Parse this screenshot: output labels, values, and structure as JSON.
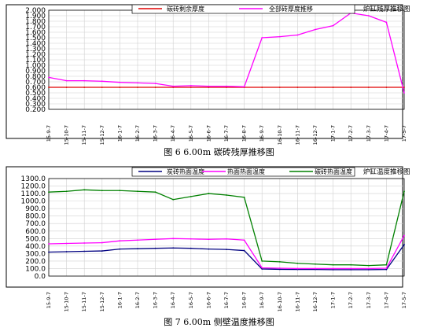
{
  "figures": [
    {
      "caption": "图 6    6.00m  碳砖残厚推移图"
    },
    {
      "caption": "图 7    6.00m  侧壁温度推移图"
    }
  ],
  "chart_data": [
    {
      "type": "line",
      "title": "炉缸残厚推移图",
      "x": [
        "15-9-7",
        "15-10-7",
        "15-11-7",
        "15-12-7",
        "16-1-7",
        "16-2-7",
        "16-3-7",
        "16-4-7",
        "16-5-7",
        "16-6-7",
        "16-7-7",
        "16-8-7",
        "16-9-7",
        "16-10-7",
        "16-11-7",
        "16-12-7",
        "17-1-7",
        "17-2-7",
        "17-3-7",
        "17-4-7",
        "17-5-7"
      ],
      "yticks": [
        "2.000",
        "1.900",
        "1.800",
        "1.700",
        "1.600",
        "1.500",
        "1.400",
        "1.300",
        "1.200",
        "1.100",
        "1.000",
        "0.900",
        "0.800",
        "0.700",
        "0.600",
        "0.500",
        "0.400",
        "0.300",
        "0.200"
      ],
      "ylim": [
        0.2,
        2.0
      ],
      "grid": true,
      "legend_position": "top",
      "series": [
        {
          "name": "碳砖剩余厚度",
          "color": "#e00000",
          "values": [
            0.6,
            0.6,
            0.6,
            0.6,
            0.6,
            0.6,
            0.6,
            0.6,
            0.6,
            0.6,
            0.6,
            0.6,
            0.6,
            0.6,
            0.6,
            0.6,
            0.6,
            0.6,
            0.6,
            0.6,
            0.6
          ]
        },
        {
          "name": "全部砖厚度推移",
          "color": "#ff00ff",
          "values": [
            0.78,
            0.72,
            0.72,
            0.71,
            0.69,
            0.68,
            0.67,
            0.62,
            0.63,
            0.62,
            0.62,
            0.61,
            1.5,
            1.52,
            1.55,
            1.65,
            1.72,
            1.95,
            1.9,
            1.78,
            0.5
          ]
        }
      ]
    },
    {
      "type": "line",
      "title": "炉缸温度推移图",
      "x": [
        "15-9-7",
        "15-10-7",
        "15-11-7",
        "15-12-7",
        "16-1-7",
        "16-2-7",
        "16-3-7",
        "16-4-7",
        "16-5-7",
        "16-6-7",
        "16-7-7",
        "16-8-7",
        "16-9-7",
        "16-10-7",
        "16-11-7",
        "16-12-7",
        "17-1-7",
        "17-2-7",
        "17-3-7",
        "17-4-7",
        "17-5-7"
      ],
      "yticks": [
        "1300.0",
        "1200.0",
        "1100.0",
        "1000.0",
        "900.0",
        "800.0",
        "700.0",
        "600.0",
        "500.0",
        "400.0",
        "300.0",
        "200.0",
        "100.0",
        "0.0"
      ],
      "ylim": [
        0,
        1300
      ],
      "grid": true,
      "legend_position": "top",
      "series": [
        {
          "name": "炭砖热面温度",
          "color": "#000080",
          "values": [
            320,
            325,
            330,
            335,
            360,
            365,
            370,
            375,
            370,
            360,
            355,
            340,
            95,
            90,
            88,
            88,
            85,
            85,
            85,
            88,
            420
          ]
        },
        {
          "name": "热面热面温度",
          "color": "#ff00ff",
          "values": [
            430,
            435,
            440,
            445,
            470,
            480,
            490,
            500,
            495,
            490,
            495,
            480,
            110,
            105,
            100,
            100,
            100,
            100,
            100,
            105,
            540
          ]
        },
        {
          "name": "碳砖热面温度",
          "color": "#008000",
          "values": [
            1120,
            1130,
            1150,
            1140,
            1140,
            1130,
            1120,
            1020,
            1060,
            1100,
            1080,
            1050,
            200,
            190,
            170,
            160,
            150,
            150,
            140,
            150,
            1130
          ]
        }
      ]
    }
  ]
}
